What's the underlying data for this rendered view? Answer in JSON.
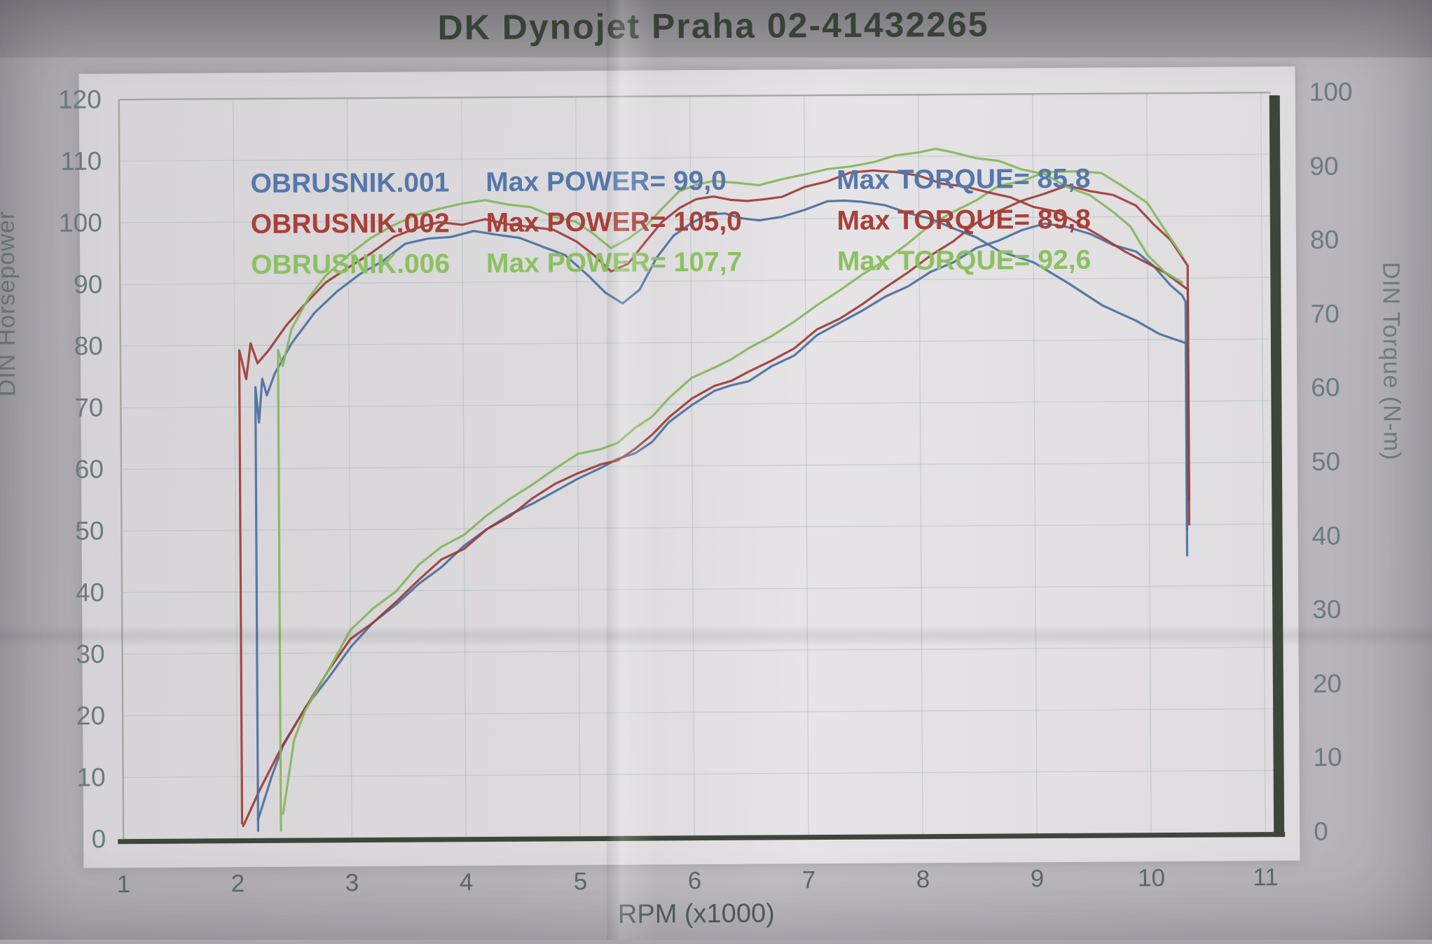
{
  "title": "DK  Dynojet  Praha 02-41432265",
  "colors": {
    "run001": "#4a6fa0",
    "run002": "#9e3c36",
    "run006": "#86b65a",
    "title_text": "#3c463a",
    "frame": "#3f453b",
    "grid": "#9fb0b6",
    "tick_text": "#6d7a7e"
  },
  "legend": {
    "rows": [
      {
        "file": "OBRUSNIK.001",
        "power": "Max POWER= 99,0",
        "torque": "Max TORQUE= 85,8",
        "color": "#5577aa"
      },
      {
        "file": "OBRUSNIK.002",
        "power": "Max POWER= 105,0",
        "torque": "Max TORQUE= 89,8",
        "color": "#a84038"
      },
      {
        "file": "OBRUSNIK.006",
        "power": "Max POWER= 107,7",
        "torque": "Max TORQUE= 92,6",
        "color": "#8cc060"
      }
    ]
  },
  "axes": {
    "left_title": "DIN Horsepower",
    "right_title": "DIN Torque (N-m)",
    "x_title": "RPM (x1000)"
  },
  "chart_data": {
    "type": "line",
    "title": "DK Dynojet Praha 02-41432265",
    "xlabel": "RPM (x1000)",
    "x_range": [
      1,
      11
    ],
    "x_ticks": [
      1,
      2,
      3,
      4,
      5,
      6,
      7,
      8,
      9,
      10,
      11
    ],
    "left_axis": {
      "label": "DIN Horsepower",
      "range": [
        0,
        120
      ],
      "ticks": [
        0,
        10,
        20,
        30,
        40,
        50,
        60,
        70,
        80,
        90,
        100,
        110,
        120
      ]
    },
    "right_axis": {
      "label": "DIN Torque (N-m)",
      "range": [
        0,
        100
      ],
      "ticks": [
        0,
        10,
        20,
        30,
        40,
        50,
        60,
        70,
        80,
        90,
        100
      ]
    },
    "grid": true,
    "legend_position": "top-left",
    "series": [
      {
        "id": "power-001",
        "name": "OBRUSNIK.001 power",
        "axis": "left",
        "max": 99.0,
        "color": "#4a6fa0",
        "points": [
          [
            2.18,
            3
          ],
          [
            2.3,
            10
          ],
          [
            2.4,
            15
          ],
          [
            2.6,
            21
          ],
          [
            2.8,
            26
          ],
          [
            3.0,
            31
          ],
          [
            3.2,
            35
          ],
          [
            3.4,
            38
          ],
          [
            3.6,
            41
          ],
          [
            3.8,
            44
          ],
          [
            4.0,
            47
          ],
          [
            4.2,
            50
          ],
          [
            4.4,
            52
          ],
          [
            4.6,
            54
          ],
          [
            4.8,
            56
          ],
          [
            5.0,
            58
          ],
          [
            5.2,
            60
          ],
          [
            5.35,
            61
          ],
          [
            5.5,
            62
          ],
          [
            5.65,
            64
          ],
          [
            5.8,
            67
          ],
          [
            6.0,
            70
          ],
          [
            6.2,
            72
          ],
          [
            6.35,
            73
          ],
          [
            6.5,
            74
          ],
          [
            6.7,
            76
          ],
          [
            6.9,
            78
          ],
          [
            7.1,
            81
          ],
          [
            7.3,
            83
          ],
          [
            7.5,
            85
          ],
          [
            7.7,
            87
          ],
          [
            7.9,
            89
          ],
          [
            8.1,
            91
          ],
          [
            8.3,
            93
          ],
          [
            8.5,
            95
          ],
          [
            8.7,
            96.5
          ],
          [
            8.9,
            98
          ],
          [
            9.1,
            99
          ],
          [
            9.3,
            98.5
          ],
          [
            9.5,
            97
          ],
          [
            9.7,
            95.5
          ],
          [
            9.9,
            94
          ],
          [
            10.05,
            92
          ],
          [
            10.2,
            89
          ],
          [
            10.3,
            87
          ],
          [
            10.33,
            86
          ],
          [
            10.33,
            45
          ]
        ]
      },
      {
        "id": "power-002",
        "name": "OBRUSNIK.002 power",
        "axis": "left",
        "max": 105.0,
        "color": "#9e3c36",
        "points": [
          [
            2.05,
            2
          ],
          [
            2.2,
            8
          ],
          [
            2.4,
            15
          ],
          [
            2.6,
            21
          ],
          [
            2.8,
            27
          ],
          [
            3.0,
            32
          ],
          [
            3.2,
            35
          ],
          [
            3.4,
            38
          ],
          [
            3.6,
            42
          ],
          [
            3.8,
            45
          ],
          [
            4.0,
            47
          ],
          [
            4.2,
            50
          ],
          [
            4.4,
            52
          ],
          [
            4.6,
            55
          ],
          [
            4.8,
            57
          ],
          [
            5.0,
            59
          ],
          [
            5.2,
            60
          ],
          [
            5.35,
            61
          ],
          [
            5.5,
            63
          ],
          [
            5.65,
            65
          ],
          [
            5.8,
            68
          ],
          [
            6.0,
            71
          ],
          [
            6.2,
            73
          ],
          [
            6.35,
            74
          ],
          [
            6.5,
            75
          ],
          [
            6.7,
            77
          ],
          [
            6.9,
            79
          ],
          [
            7.1,
            82
          ],
          [
            7.3,
            84
          ],
          [
            7.5,
            86
          ],
          [
            7.7,
            89
          ],
          [
            7.9,
            91
          ],
          [
            8.1,
            94
          ],
          [
            8.3,
            96
          ],
          [
            8.5,
            99
          ],
          [
            8.7,
            101
          ],
          [
            8.9,
            102.5
          ],
          [
            9.1,
            104
          ],
          [
            9.3,
            105
          ],
          [
            9.5,
            104.5
          ],
          [
            9.7,
            103.5
          ],
          [
            9.9,
            102
          ],
          [
            10.05,
            99
          ],
          [
            10.2,
            96
          ],
          [
            10.35,
            92
          ],
          [
            10.35,
            50
          ]
        ]
      },
      {
        "id": "power-006",
        "name": "OBRUSNIK.006 power",
        "axis": "left",
        "max": 107.7,
        "color": "#86b65a",
        "points": [
          [
            2.4,
            4
          ],
          [
            2.5,
            16
          ],
          [
            2.6,
            21
          ],
          [
            2.8,
            27
          ],
          [
            3.0,
            34
          ],
          [
            3.2,
            37
          ],
          [
            3.4,
            40
          ],
          [
            3.6,
            44
          ],
          [
            3.8,
            47
          ],
          [
            4.0,
            49
          ],
          [
            4.2,
            52
          ],
          [
            4.4,
            55
          ],
          [
            4.6,
            57
          ],
          [
            4.8,
            60
          ],
          [
            5.0,
            62
          ],
          [
            5.2,
            63
          ],
          [
            5.35,
            64
          ],
          [
            5.5,
            66
          ],
          [
            5.65,
            68
          ],
          [
            5.8,
            71
          ],
          [
            6.0,
            74
          ],
          [
            6.2,
            76
          ],
          [
            6.35,
            77
          ],
          [
            6.5,
            79
          ],
          [
            6.7,
            81
          ],
          [
            6.9,
            83
          ],
          [
            7.1,
            86
          ],
          [
            7.3,
            88
          ],
          [
            7.5,
            91
          ],
          [
            7.7,
            93
          ],
          [
            7.9,
            96
          ],
          [
            8.1,
            99
          ],
          [
            8.3,
            101
          ],
          [
            8.5,
            103
          ],
          [
            8.7,
            105
          ],
          [
            8.9,
            106
          ],
          [
            9.1,
            107
          ],
          [
            9.4,
            107.7
          ],
          [
            9.6,
            107
          ],
          [
            9.8,
            105
          ],
          [
            10.0,
            102
          ],
          [
            10.15,
            98
          ],
          [
            10.3,
            94
          ]
        ]
      },
      {
        "id": "torque-001",
        "name": "OBRUSNIK.001 torque",
        "axis": "right",
        "max": 85.8,
        "color": "#4a6fa0",
        "points": [
          [
            2.18,
            1
          ],
          [
            2.18,
            61
          ],
          [
            2.21,
            56
          ],
          [
            2.24,
            62
          ],
          [
            2.28,
            60
          ],
          [
            2.35,
            63
          ],
          [
            2.5,
            67
          ],
          [
            2.7,
            71
          ],
          [
            2.9,
            74
          ],
          [
            3.1,
            76
          ],
          [
            3.3,
            78
          ],
          [
            3.5,
            80
          ],
          [
            3.7,
            81
          ],
          [
            3.9,
            81
          ],
          [
            4.1,
            82
          ],
          [
            4.3,
            81.5
          ],
          [
            4.5,
            81
          ],
          [
            4.7,
            80
          ],
          [
            4.9,
            78.5
          ],
          [
            5.1,
            76
          ],
          [
            5.25,
            73.5
          ],
          [
            5.4,
            72
          ],
          [
            5.55,
            74
          ],
          [
            5.7,
            78
          ],
          [
            5.85,
            81
          ],
          [
            6.0,
            83
          ],
          [
            6.15,
            84
          ],
          [
            6.3,
            84
          ],
          [
            6.45,
            83.5
          ],
          [
            6.6,
            83
          ],
          [
            6.8,
            83.5
          ],
          [
            7.0,
            84.5
          ],
          [
            7.2,
            85.5
          ],
          [
            7.35,
            85.8
          ],
          [
            7.5,
            85.5
          ],
          [
            7.7,
            85
          ],
          [
            7.9,
            84
          ],
          [
            8.1,
            83
          ],
          [
            8.3,
            82
          ],
          [
            8.5,
            80.5
          ],
          [
            8.7,
            79
          ],
          [
            9.0,
            77
          ],
          [
            9.3,
            74.5
          ],
          [
            9.6,
            71.5
          ],
          [
            9.9,
            69
          ],
          [
            10.1,
            67.5
          ],
          [
            10.25,
            66.5
          ],
          [
            10.33,
            66
          ],
          [
            10.33,
            41
          ]
        ]
      },
      {
        "id": "torque-002",
        "name": "OBRUSNIK.002 torque",
        "axis": "right",
        "max": 89.8,
        "color": "#9e3c36",
        "points": [
          [
            2.04,
            2
          ],
          [
            2.04,
            66
          ],
          [
            2.1,
            62
          ],
          [
            2.14,
            67
          ],
          [
            2.2,
            64.5
          ],
          [
            2.3,
            66
          ],
          [
            2.45,
            69
          ],
          [
            2.6,
            72
          ],
          [
            2.8,
            75
          ],
          [
            3.0,
            77
          ],
          [
            3.2,
            79
          ],
          [
            3.4,
            81
          ],
          [
            3.6,
            82.5
          ],
          [
            3.8,
            83
          ],
          [
            4.0,
            83
          ],
          [
            4.2,
            83.5
          ],
          [
            4.4,
            83
          ],
          [
            4.6,
            82.5
          ],
          [
            4.8,
            82
          ],
          [
            5.0,
            80.5
          ],
          [
            5.15,
            78.5
          ],
          [
            5.3,
            76.5
          ],
          [
            5.45,
            77.5
          ],
          [
            5.6,
            80
          ],
          [
            5.75,
            83
          ],
          [
            5.9,
            85
          ],
          [
            6.05,
            86
          ],
          [
            6.2,
            86.5
          ],
          [
            6.35,
            86
          ],
          [
            6.5,
            85.5
          ],
          [
            6.65,
            86
          ],
          [
            6.8,
            86.5
          ],
          [
            7.0,
            87.5
          ],
          [
            7.2,
            88.5
          ],
          [
            7.4,
            89.3
          ],
          [
            7.6,
            89.8
          ],
          [
            7.8,
            89.4
          ],
          [
            8.0,
            89
          ],
          [
            8.2,
            88
          ],
          [
            8.4,
            87.5
          ],
          [
            8.6,
            87
          ],
          [
            8.8,
            86
          ],
          [
            9.0,
            85
          ],
          [
            9.2,
            84
          ],
          [
            9.4,
            82.5
          ],
          [
            9.6,
            80.5
          ],
          [
            9.8,
            78.5
          ],
          [
            10.0,
            77
          ],
          [
            10.15,
            75.5
          ],
          [
            10.35,
            73.5
          ],
          [
            10.35,
            45
          ]
        ]
      },
      {
        "id": "torque-006",
        "name": "OBRUSNIK.006 torque",
        "axis": "right",
        "max": 92.6,
        "color": "#86b65a",
        "points": [
          [
            2.38,
            1
          ],
          [
            2.38,
            66
          ],
          [
            2.42,
            64
          ],
          [
            2.5,
            69
          ],
          [
            2.65,
            73
          ],
          [
            2.8,
            76
          ],
          [
            3.0,
            79
          ],
          [
            3.2,
            81
          ],
          [
            3.4,
            83
          ],
          [
            3.6,
            84
          ],
          [
            3.8,
            85
          ],
          [
            4.0,
            85.5
          ],
          [
            4.2,
            86
          ],
          [
            4.4,
            85.5
          ],
          [
            4.6,
            85
          ],
          [
            4.8,
            84
          ],
          [
            5.0,
            83
          ],
          [
            5.15,
            81.5
          ],
          [
            5.3,
            79.5
          ],
          [
            5.45,
            80.5
          ],
          [
            5.6,
            82.5
          ],
          [
            5.75,
            85
          ],
          [
            5.9,
            87
          ],
          [
            6.05,
            88
          ],
          [
            6.2,
            88.5
          ],
          [
            6.4,
            88
          ],
          [
            6.6,
            88
          ],
          [
            6.8,
            88.5
          ],
          [
            7.0,
            89.5
          ],
          [
            7.2,
            90
          ],
          [
            7.4,
            90.5
          ],
          [
            7.6,
            91
          ],
          [
            7.8,
            91.8
          ],
          [
            8.0,
            92.3
          ],
          [
            8.15,
            92.6
          ],
          [
            8.3,
            92.3
          ],
          [
            8.5,
            91.5
          ],
          [
            8.7,
            91
          ],
          [
            8.9,
            90
          ],
          [
            9.1,
            89
          ],
          [
            9.3,
            87.5
          ],
          [
            9.5,
            86
          ],
          [
            9.7,
            84
          ],
          [
            9.85,
            82
          ],
          [
            10.0,
            78
          ],
          [
            10.15,
            76
          ],
          [
            10.3,
            74.5
          ]
        ]
      }
    ]
  }
}
